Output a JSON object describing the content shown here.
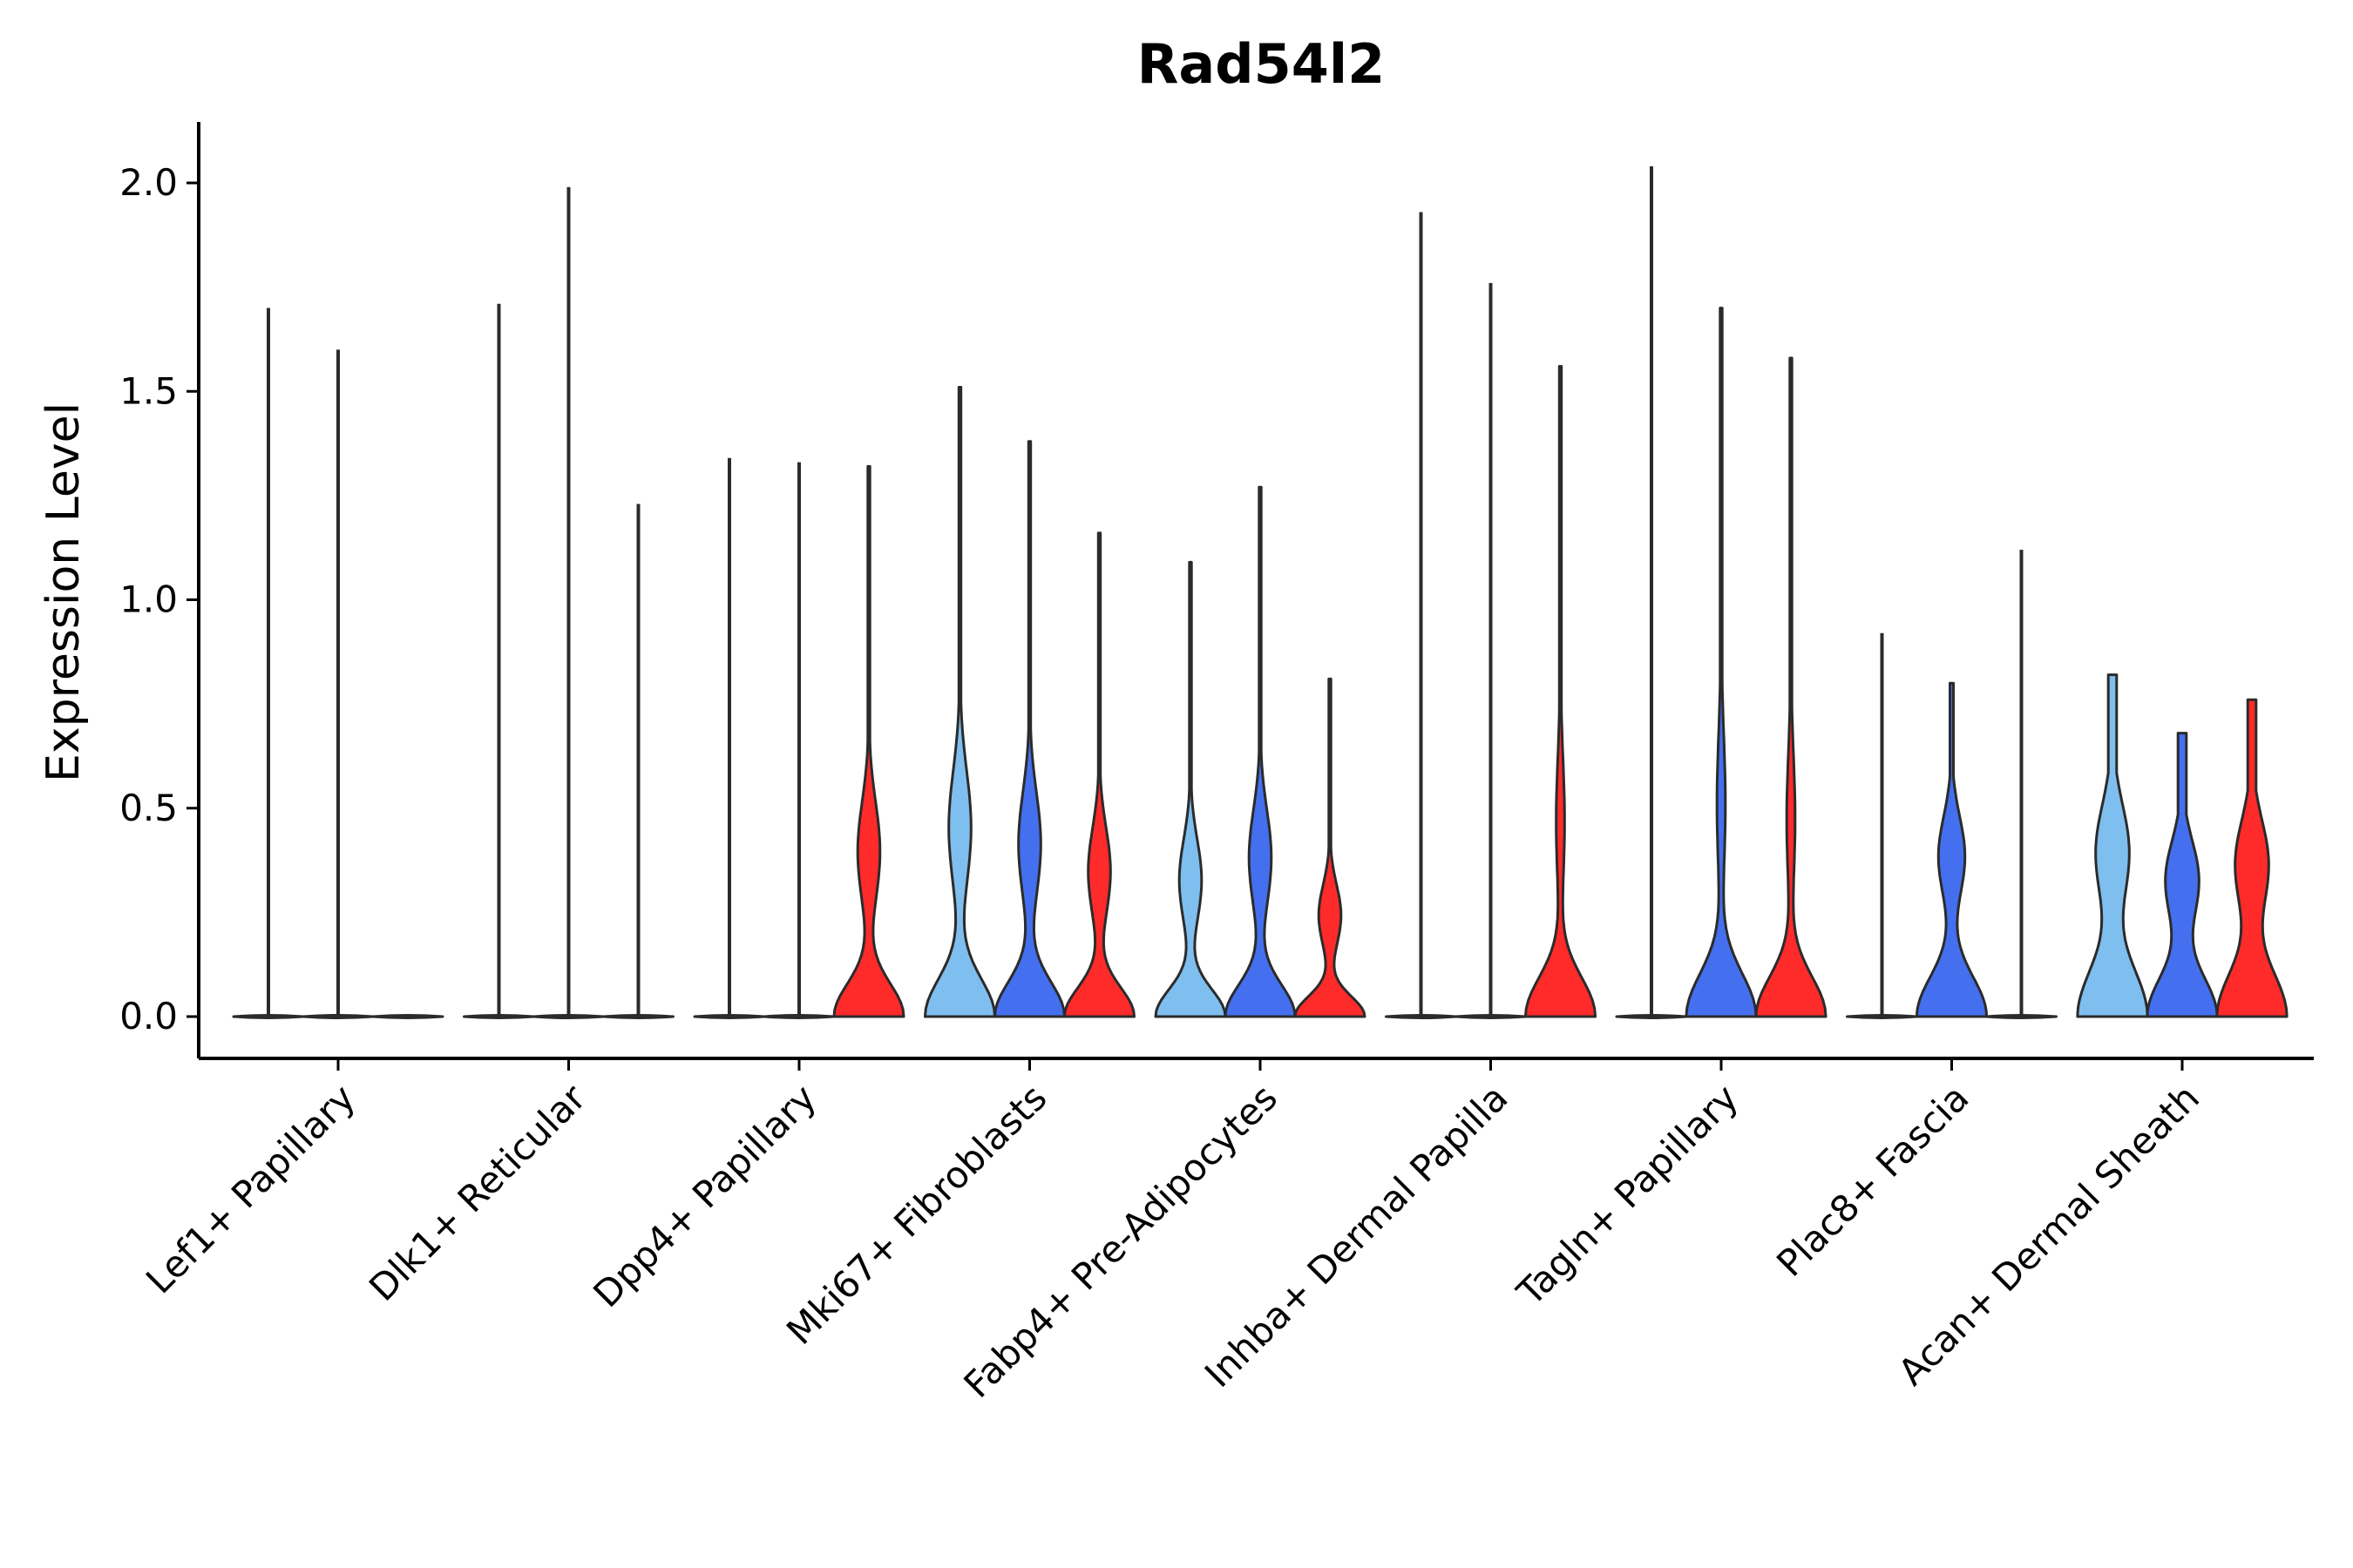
{
  "chart_data": {
    "type": "violin",
    "title": "Rad54l2",
    "xlabel": "",
    "ylabel": "Expression Level",
    "ylim": [
      -0.1,
      2.15
    ],
    "yticks": [
      "0.0",
      "0.5",
      "1.0",
      "1.5",
      "2.0"
    ],
    "ytick_values": [
      0,
      0.5,
      1.0,
      1.5,
      2.0
    ],
    "grid": false,
    "legend": "none",
    "series_colors": [
      "#7fbfef",
      "#4470ef",
      "#ff2a2a"
    ],
    "categories": [
      "Lef1+ Papillary",
      "Dlk1+ Reticular",
      "Dpp4+ Papillary",
      "Mki67+ Fibroblasts",
      "Fabp4+ Pre-Adipocytes",
      "Inhba+ Dermal Papilla",
      "Tagln+ Papillary",
      "Plac8+ Fascia",
      "Acan+ Dermal Sheath"
    ],
    "violins": [
      [
        {
          "max": 1.7,
          "shape": "flat"
        },
        {
          "max": 1.6,
          "shape": "flat"
        },
        {
          "max": 0.0,
          "shape": "flat"
        }
      ],
      [
        {
          "max": 1.71,
          "shape": "flat"
        },
        {
          "max": 1.99,
          "shape": "flat"
        },
        {
          "max": 1.23,
          "shape": "flat"
        }
      ],
      [
        {
          "max": 1.34,
          "shape": "flat"
        },
        {
          "max": 1.33,
          "shape": "flat"
        },
        {
          "max": 1.32,
          "shape": "bimodal-mid"
        }
      ],
      [
        {
          "max": 1.51,
          "shape": "bimodal-mid"
        },
        {
          "max": 1.38,
          "shape": "bimodal-mid"
        },
        {
          "max": 1.16,
          "shape": "bimodal-mid"
        }
      ],
      [
        {
          "max": 1.09,
          "shape": "bimodal-mid"
        },
        {
          "max": 1.27,
          "shape": "bimodal-mid"
        },
        {
          "max": 0.81,
          "shape": "bimodal-mid"
        }
      ],
      [
        {
          "max": 1.93,
          "shape": "flat"
        },
        {
          "max": 1.76,
          "shape": "flat"
        },
        {
          "max": 1.56,
          "shape": "bimodal-low"
        }
      ],
      [
        {
          "max": 2.04,
          "shape": "flat"
        },
        {
          "max": 1.7,
          "shape": "bimodal-low"
        },
        {
          "max": 1.58,
          "shape": "bimodal-low"
        }
      ],
      [
        {
          "max": 0.92,
          "shape": "flat"
        },
        {
          "max": 0.8,
          "shape": "bimodal-wide"
        },
        {
          "max": 1.12,
          "shape": "flat"
        }
      ],
      [
        {
          "max": 0.82,
          "shape": "full"
        },
        {
          "max": 0.68,
          "shape": "full"
        },
        {
          "max": 0.76,
          "shape": "full"
        }
      ]
    ]
  }
}
